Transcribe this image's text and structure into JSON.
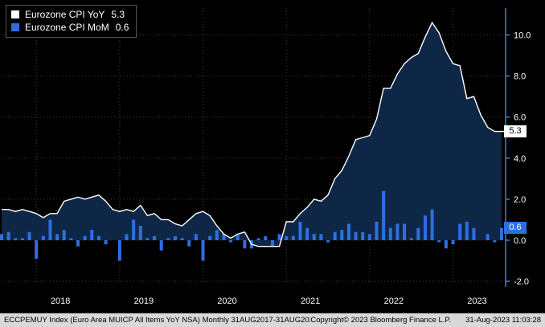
{
  "legend": {
    "items": [
      {
        "label": "Eurozone CPI YoY",
        "value": "5.3",
        "color": "#ffffff"
      },
      {
        "label": "Eurozone CPI MoM",
        "value": "0.6",
        "color": "#2e6fe0"
      }
    ]
  },
  "axis": {
    "y_ticks": [
      10.0,
      8.0,
      6.0,
      4.0,
      2.0,
      0.0,
      -2.0
    ],
    "last_yoy": "5.3",
    "last_mom": "0.6",
    "x_labels": [
      "2018",
      "2019",
      "2020",
      "2021",
      "2022",
      "2023"
    ]
  },
  "colors": {
    "background": "#000000",
    "grid": "#3f3f3f",
    "axis": "#4a7dc0",
    "tick_text": "#ffffff",
    "year_text": "#ffffff",
    "badge_yoy_bg": "#ffffff",
    "badge_yoy_text": "#000000",
    "badge_mom_bg": "#2e6fe0",
    "badge_mom_text": "#ffffff",
    "footer_bg": "#d9d9d9",
    "footer_text": "#000000"
  },
  "footer": {
    "left": "ECCPEMUY Index (Euro Area MUICP All Items YoY NSA)  Monthly 31AUG2017-31AUG2023",
    "copyright": "Copyright© 2023 Bloomberg Finance L.P.",
    "timestamp": "31-Aug-2023 11:03:28"
  },
  "chart_data": {
    "type": "line+bar",
    "title": "",
    "x_start": "2017-08",
    "x_end": "2023-08",
    "ylim": [
      -2.6,
      11.3
    ],
    "y_ticks": [
      10,
      8,
      6,
      4,
      2,
      0,
      -2
    ],
    "grid": "dotted",
    "legend_position": "top-left",
    "months": [
      "2017-08",
      "2017-09",
      "2017-10",
      "2017-11",
      "2017-12",
      "2018-01",
      "2018-02",
      "2018-03",
      "2018-04",
      "2018-05",
      "2018-06",
      "2018-07",
      "2018-08",
      "2018-09",
      "2018-10",
      "2018-11",
      "2018-12",
      "2019-01",
      "2019-02",
      "2019-03",
      "2019-04",
      "2019-05",
      "2019-06",
      "2019-07",
      "2019-08",
      "2019-09",
      "2019-10",
      "2019-11",
      "2019-12",
      "2020-01",
      "2020-02",
      "2020-03",
      "2020-04",
      "2020-05",
      "2020-06",
      "2020-07",
      "2020-08",
      "2020-09",
      "2020-10",
      "2020-11",
      "2020-12",
      "2021-01",
      "2021-02",
      "2021-03",
      "2021-04",
      "2021-05",
      "2021-06",
      "2021-07",
      "2021-08",
      "2021-09",
      "2021-10",
      "2021-11",
      "2021-12",
      "2022-01",
      "2022-02",
      "2022-03",
      "2022-04",
      "2022-05",
      "2022-06",
      "2022-07",
      "2022-08",
      "2022-09",
      "2022-10",
      "2022-11",
      "2022-12",
      "2023-01",
      "2023-02",
      "2023-03",
      "2023-04",
      "2023-05",
      "2023-06",
      "2023-07",
      "2023-08"
    ],
    "series": [
      {
        "name": "Eurozone CPI YoY",
        "type": "area-line",
        "color": "#ffffff",
        "fill": "#0f2747",
        "values": [
          1.5,
          1.5,
          1.4,
          1.5,
          1.4,
          1.3,
          1.1,
          1.3,
          1.3,
          1.9,
          2.0,
          2.1,
          2.0,
          2.1,
          2.2,
          1.9,
          1.5,
          1.4,
          1.5,
          1.4,
          1.7,
          1.2,
          1.3,
          1.0,
          1.0,
          0.8,
          0.7,
          1.0,
          1.3,
          1.4,
          1.2,
          0.7,
          0.3,
          0.1,
          0.3,
          0.4,
          -0.2,
          -0.3,
          -0.3,
          -0.3,
          -0.3,
          0.9,
          0.9,
          1.3,
          1.6,
          2.0,
          1.9,
          2.2,
          3.0,
          3.4,
          4.1,
          4.9,
          5.0,
          5.1,
          5.9,
          7.4,
          7.4,
          8.1,
          8.6,
          8.9,
          9.1,
          9.9,
          10.6,
          10.1,
          9.2,
          8.6,
          8.5,
          6.9,
          7.0,
          6.1,
          5.5,
          5.3,
          5.3
        ]
      },
      {
        "name": "Eurozone CPI MoM",
        "type": "bar",
        "color": "#2e6fe0",
        "values": [
          0.3,
          0.4,
          0.1,
          0.1,
          0.4,
          -0.9,
          0.2,
          1.0,
          0.3,
          0.5,
          0.1,
          -0.3,
          0.2,
          0.5,
          0.2,
          -0.2,
          0.0,
          -1.0,
          0.3,
          1.0,
          0.7,
          0.1,
          0.2,
          -0.5,
          0.1,
          0.2,
          0.1,
          -0.3,
          0.3,
          -1.0,
          0.2,
          0.5,
          0.3,
          -0.1,
          0.3,
          -0.4,
          -0.4,
          0.1,
          0.2,
          -0.3,
          0.3,
          0.2,
          0.2,
          0.9,
          0.6,
          0.3,
          0.3,
          -0.1,
          0.4,
          0.5,
          0.8,
          0.4,
          0.4,
          0.3,
          0.9,
          2.4,
          0.6,
          0.8,
          0.8,
          0.1,
          0.6,
          1.2,
          1.5,
          -0.1,
          -0.4,
          -0.2,
          0.8,
          0.9,
          0.6,
          0.0,
          0.3,
          -0.1,
          0.6
        ]
      }
    ]
  }
}
